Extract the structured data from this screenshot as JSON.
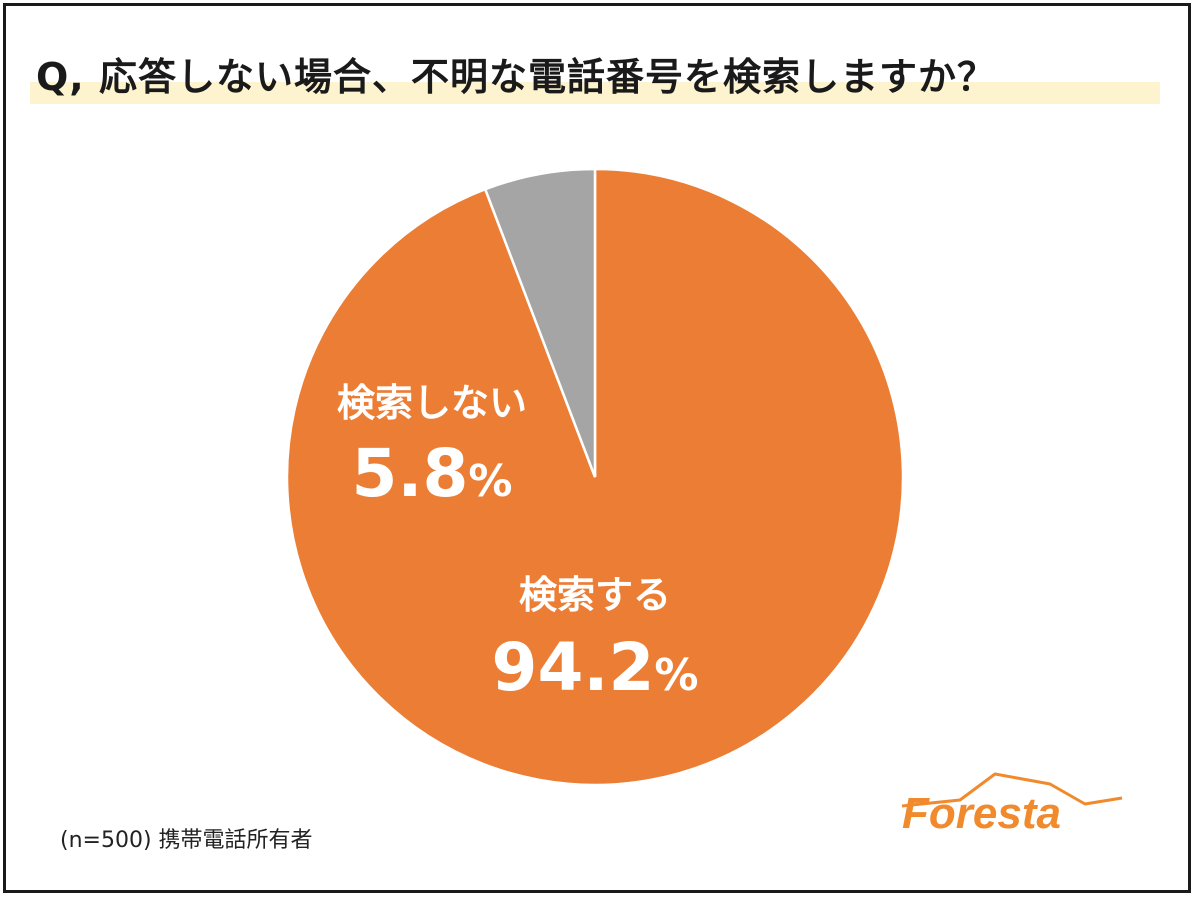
{
  "title": "Q, 応答しない場合、不明な電話番号を検索しますか？",
  "note": "(n=500) 携帯電話所有者",
  "logo_text": "Foresta",
  "colors": {
    "orange": "#ec7d34",
    "gray": "#a5a5a5",
    "highlight": "#fdf3cf",
    "logo": "#f08a2c"
  },
  "chart_data": {
    "type": "pie",
    "slices": [
      {
        "label": "検索する",
        "value": 94.2,
        "value_text": "94.2",
        "unit": "%",
        "color": "#ec7d34"
      },
      {
        "label": "検索しない",
        "value": 5.8,
        "value_text": "5.8",
        "unit": "%",
        "color": "#a5a5a5"
      }
    ],
    "start": "12 o'clock",
    "direction": "clockwise"
  }
}
